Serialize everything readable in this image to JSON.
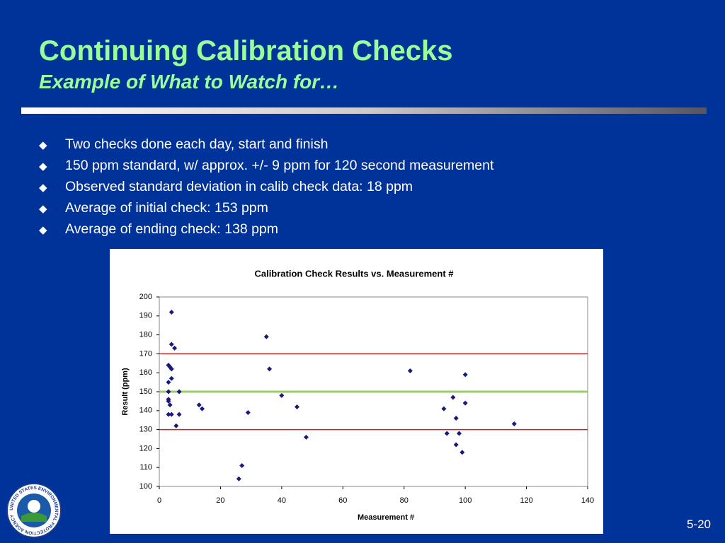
{
  "title": "Continuing Calibration Checks",
  "subtitle": "Example of What to Watch for…",
  "bullets": [
    "Two checks done each day, start and finish",
    "150 ppm standard, w/ approx. +/- 9 ppm for 120 second measurement",
    "Observed standard deviation in calib check data:  18 ppm",
    "Average of initial check:  153 ppm",
    "Average of ending check:  138 ppm"
  ],
  "logo_text": "UNITED STATES ENVIRONMENTAL PROTECTION AGENCY",
  "page_number": "5-20",
  "chart_data": {
    "type": "scatter",
    "title": "Calibration Check Results vs. Measurement #",
    "x_label": "Measurement  #",
    "y_label": "Result (ppm)",
    "series": [
      {
        "name": "Result",
        "color": "#1a1a7a",
        "x": [
          4,
          4,
          5,
          3,
          3.5,
          4,
          3,
          4,
          3,
          6.5,
          3,
          3,
          3.5,
          3,
          4,
          6.5,
          5.5,
          13,
          14,
          29,
          35,
          36,
          40,
          45,
          48,
          26,
          27,
          82,
          93,
          96,
          97,
          94,
          98,
          97,
          99,
          100,
          100,
          116
        ],
        "values": [
          192,
          175,
          173,
          164,
          163,
          162,
          155,
          157,
          150,
          150,
          146,
          145,
          143,
          138,
          138,
          138,
          132,
          143,
          141,
          139,
          179,
          162,
          148,
          142,
          126,
          104,
          111,
          161,
          141,
          147,
          136,
          128,
          128,
          122,
          118,
          159,
          144,
          133
        ]
      }
    ],
    "reference_lines": [
      {
        "value": 170,
        "color": "#cc2222"
      },
      {
        "value": 150,
        "color": "#99cc66"
      },
      {
        "value": 130,
        "color": "#cc2222"
      }
    ],
    "xlim": [
      0,
      140
    ],
    "xticks": [
      0,
      20,
      40,
      60,
      80,
      100,
      120,
      140
    ],
    "ylim": [
      100,
      200
    ],
    "yticks": [
      100,
      110,
      120,
      130,
      140,
      150,
      160,
      170,
      180,
      190,
      200
    ],
    "grid": false
  }
}
